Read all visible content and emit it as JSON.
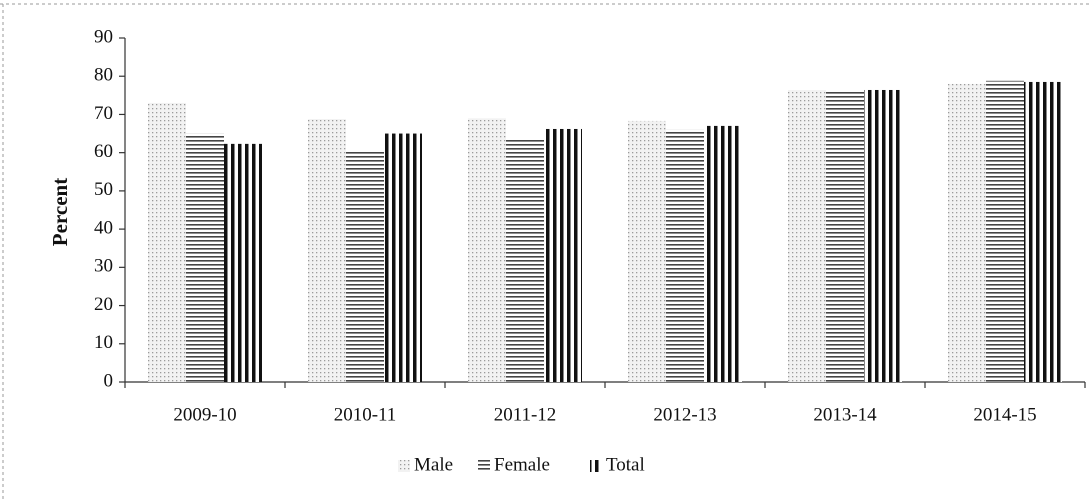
{
  "chart_data": {
    "type": "bar",
    "y_label": "Percent",
    "categories": [
      "2009-10",
      "2010-11",
      "2011-12",
      "2012-13",
      "2013-14",
      "2014-15"
    ],
    "series": [
      {
        "name": "Male",
        "color": "#9a9a9a",
        "values": [
          73,
          68.8,
          69,
          68.3,
          76.4,
          78
        ]
      },
      {
        "name": "Female",
        "color": "#444444",
        "values": [
          65,
          60.2,
          63.6,
          66,
          76,
          78.8
        ]
      },
      {
        "name": "Total",
        "color": "#111111",
        "values": [
          62.3,
          65,
          66.2,
          67,
          76.4,
          78.5
        ]
      }
    ],
    "ylim": [
      0,
      90
    ],
    "yticks": [
      0,
      10,
      20,
      30,
      40,
      50,
      60,
      70,
      80,
      90
    ],
    "legend": "bottom"
  }
}
